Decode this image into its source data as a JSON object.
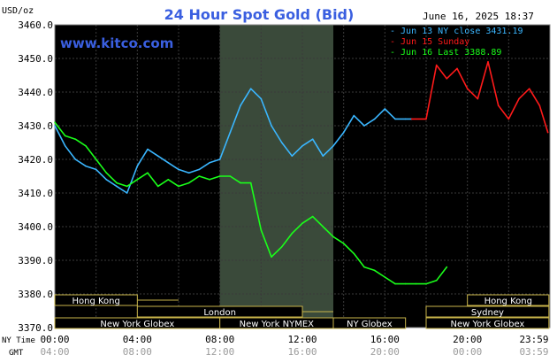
{
  "header": {
    "title": "24 Hour Spot Gold (Bid)",
    "timestamp": "June 16, 2025 18:37",
    "unit_label": "USD/oz",
    "watermark": "www.kitco.com"
  },
  "colors": {
    "background": "#000000",
    "title": "#3a5fe0",
    "grid": "#444444",
    "axis_text": "#cfcfcf",
    "market_fill": "#3a4a3a",
    "market_text": "#ffffff",
    "market_border": "#c8b44a"
  },
  "chart_data": {
    "type": "line",
    "title": "24 Hour Spot Gold (Bid)",
    "xlabel": "",
    "ylabel": "USD/oz",
    "ylim": [
      3370,
      3460
    ],
    "y_ticks": [
      "3370.0",
      "3380.0",
      "3390.0",
      "3400.0",
      "3410.0",
      "3420.0",
      "3430.0",
      "3440.0",
      "3450.0",
      "3460.0"
    ],
    "x_ticks_ny": [
      "00:00",
      "04:00",
      "08:00",
      "12:00",
      "16:00",
      "20:00",
      "23:59"
    ],
    "x_ticks_gmt": [
      "04:00",
      "08:00",
      "12:00",
      "16:00",
      "20:00",
      "00:00",
      "03:59"
    ],
    "x_row_labels": [
      "NY Time",
      "GMT"
    ],
    "grid": true,
    "legend_position": "top-right",
    "legend": [
      {
        "label": "Jun 13 NY close 3431.19",
        "color": "#3ab6ff"
      },
      {
        "label": "Jun 15 Sunday",
        "color": "#ff1a1a"
      },
      {
        "label": "Jun 16 Last 3388.89",
        "color": "#1aff1a"
      }
    ],
    "series": [
      {
        "name": "Jun 13 NY close 3431.19",
        "color": "#3ab6ff",
        "x": [
          0,
          0.5,
          1,
          1.5,
          2,
          2.5,
          3,
          3.5,
          4,
          4.5,
          5,
          5.5,
          6,
          6.5,
          7,
          7.5,
          8,
          8.5,
          9,
          9.5,
          10,
          10.5,
          11,
          11.5,
          12,
          12.5,
          13,
          13.5,
          14,
          14.5,
          15,
          15.5,
          16,
          16.5,
          17,
          17.3
        ],
        "y": [
          3430,
          3424,
          3420,
          3418,
          3417,
          3414,
          3412,
          3410,
          3418,
          3423,
          3421,
          3419,
          3417,
          3416,
          3417,
          3419,
          3420,
          3428,
          3436,
          3441,
          3438,
          3430,
          3425,
          3421,
          3424,
          3426,
          3421,
          3424,
          3428,
          3433,
          3430,
          3432,
          3435,
          3432,
          3432,
          3432
        ]
      },
      {
        "name": "Jun 15 Sunday",
        "color": "#ff1a1a",
        "x": [
          17.3,
          18,
          18.5,
          19,
          19.5,
          20,
          20.5,
          21,
          21.5,
          22,
          22.5,
          23,
          23.5,
          23.9
        ],
        "y": [
          3432,
          3432,
          3448,
          3444,
          3447,
          3441,
          3438,
          3449,
          3436,
          3432,
          3438,
          3441,
          3436,
          3428
        ]
      },
      {
        "name": "Jun 16 Last 3388.89",
        "color": "#1aff1a",
        "x": [
          0,
          0.5,
          1,
          1.5,
          2,
          2.5,
          3,
          3.5,
          4,
          4.5,
          5,
          5.5,
          6,
          6.5,
          7,
          7.5,
          8,
          8.5,
          9,
          9.5,
          10,
          10.5,
          11,
          11.5,
          12,
          12.5,
          13,
          13.5,
          14,
          14.5,
          15,
          15.5,
          16,
          16.5,
          17,
          17.5,
          18,
          18.5,
          19
        ],
        "y": [
          3431,
          3427,
          3426,
          3424,
          3420,
          3416,
          3413,
          3412,
          3414,
          3416,
          3412,
          3414,
          3412,
          3413,
          3415,
          3414,
          3415,
          3415,
          3413,
          3413,
          3399,
          3391,
          3394,
          3398,
          3401,
          3403,
          3400,
          3397,
          3395,
          3392,
          3388,
          3387,
          3385,
          3383,
          3383,
          3383,
          3383,
          3384,
          3388
        ]
      }
    ],
    "market_sessions": [
      {
        "label": "Hong Kong",
        "row": 0,
        "start": 0,
        "end": 4
      },
      {
        "label": "London",
        "row": 1,
        "start": 4,
        "end": 12
      },
      {
        "label": "New York Globex",
        "row": 2,
        "start": 0,
        "end": 8
      },
      {
        "label": "New York NYMEX",
        "row": 2,
        "start": 8,
        "end": 13.5
      },
      {
        "label": "NY Globex",
        "row": 2,
        "start": 13.5,
        "end": 17
      },
      {
        "label": "Hong Kong",
        "row": 0,
        "start": 20,
        "end": 23.95
      },
      {
        "label": "Sydney",
        "row": 1,
        "start": 18,
        "end": 23.95
      },
      {
        "label": "New York Globex",
        "row": 2,
        "start": 18,
        "end": 23.95
      }
    ],
    "market_extensions": [
      {
        "row": 0,
        "start": 4,
        "end": 6
      },
      {
        "row": 1,
        "start": 12,
        "end": 13.5
      }
    ],
    "shaded_hours": [
      8,
      13.5
    ]
  }
}
